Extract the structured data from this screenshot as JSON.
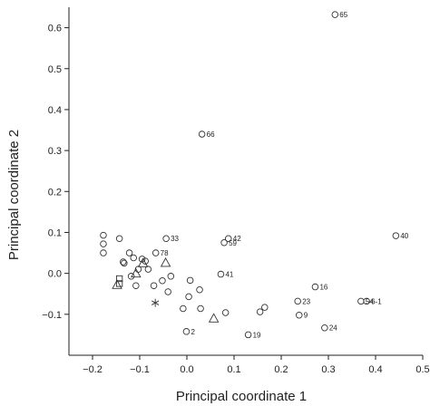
{
  "chart_data": {
    "type": "scatter",
    "xlabel": "Principal coordinate 1",
    "ylabel": "Principal coordinate 2",
    "xlim": [
      -0.25,
      0.5
    ],
    "ylim": [
      -0.2,
      0.65
    ],
    "xticks": [
      -0.2,
      -0.1,
      0.0,
      0.1,
      0.2,
      0.3,
      0.4,
      0.5
    ],
    "xtick_labels": [
      "−0.2",
      "−0.1",
      "0.0",
      "0.1",
      "0.2",
      "0.3",
      "0.4",
      "0.5"
    ],
    "yticks": [
      -0.1,
      0.0,
      0.1,
      0.2,
      0.3,
      0.4,
      0.5,
      0.6
    ],
    "ytick_labels": [
      "−0.1",
      "0.0",
      "0.1",
      "0.2",
      "0.3",
      "0.4",
      "0.5",
      "0.6"
    ],
    "grid": false,
    "points": [
      {
        "x": 0.314,
        "y": 0.632,
        "marker": "circle",
        "label": "65"
      },
      {
        "x": 0.032,
        "y": 0.34,
        "marker": "circle",
        "label": "66"
      },
      {
        "x": 0.443,
        "y": 0.092,
        "marker": "circle",
        "label": "40"
      },
      {
        "x": -0.044,
        "y": 0.085,
        "marker": "circle",
        "label": "33"
      },
      {
        "x": 0.088,
        "y": 0.085,
        "marker": "circle",
        "label": "42"
      },
      {
        "x": 0.079,
        "y": 0.075,
        "marker": "circle",
        "label": "59"
      },
      {
        "x": -0.066,
        "y": 0.05,
        "marker": "circle",
        "label": "78"
      },
      {
        "x": 0.072,
        "y": -0.002,
        "marker": "circle",
        "label": "41"
      },
      {
        "x": 0.272,
        "y": -0.033,
        "marker": "circle",
        "label": "16"
      },
      {
        "x": 0.235,
        "y": -0.068,
        "marker": "circle",
        "label": "23"
      },
      {
        "x": 0.369,
        "y": -0.068,
        "marker": "circle",
        "label": "54"
      },
      {
        "x": 0.381,
        "y": -0.068,
        "marker": "circle",
        "label": "6-1"
      },
      {
        "x": 0.238,
        "y": -0.102,
        "marker": "circle",
        "label": "9"
      },
      {
        "x": 0.292,
        "y": -0.133,
        "marker": "circle",
        "label": "24"
      },
      {
        "x": -0.001,
        "y": -0.142,
        "marker": "circle",
        "label": "2"
      },
      {
        "x": 0.13,
        "y": -0.15,
        "marker": "circle",
        "label": "19"
      },
      {
        "x": -0.177,
        "y": 0.093,
        "marker": "circle",
        "label": ""
      },
      {
        "x": -0.177,
        "y": 0.072,
        "marker": "circle",
        "label": ""
      },
      {
        "x": -0.177,
        "y": 0.05,
        "marker": "circle",
        "label": ""
      },
      {
        "x": -0.143,
        "y": 0.085,
        "marker": "circle",
        "label": ""
      },
      {
        "x": -0.122,
        "y": 0.05,
        "marker": "circle",
        "label": ""
      },
      {
        "x": -0.113,
        "y": 0.038,
        "marker": "circle",
        "label": ""
      },
      {
        "x": -0.135,
        "y": 0.028,
        "marker": "circle",
        "label": ""
      },
      {
        "x": -0.133,
        "y": 0.025,
        "marker": "circle",
        "label": ""
      },
      {
        "x": -0.095,
        "y": 0.035,
        "marker": "circle",
        "label": ""
      },
      {
        "x": -0.088,
        "y": 0.03,
        "marker": "circle",
        "label": ""
      },
      {
        "x": -0.103,
        "y": 0.01,
        "marker": "circle",
        "label": ""
      },
      {
        "x": -0.082,
        "y": 0.01,
        "marker": "circle",
        "label": ""
      },
      {
        "x": -0.118,
        "y": -0.007,
        "marker": "circle",
        "label": ""
      },
      {
        "x": -0.108,
        "y": -0.03,
        "marker": "circle",
        "label": ""
      },
      {
        "x": -0.07,
        "y": -0.03,
        "marker": "circle",
        "label": ""
      },
      {
        "x": -0.052,
        "y": -0.018,
        "marker": "circle",
        "label": ""
      },
      {
        "x": -0.034,
        "y": -0.007,
        "marker": "circle",
        "label": ""
      },
      {
        "x": -0.04,
        "y": -0.045,
        "marker": "circle",
        "label": ""
      },
      {
        "x": 0.007,
        "y": -0.017,
        "marker": "circle",
        "label": ""
      },
      {
        "x": 0.027,
        "y": -0.04,
        "marker": "circle",
        "label": ""
      },
      {
        "x": 0.004,
        "y": -0.057,
        "marker": "circle",
        "label": ""
      },
      {
        "x": -0.008,
        "y": -0.086,
        "marker": "circle",
        "label": ""
      },
      {
        "x": 0.029,
        "y": -0.086,
        "marker": "circle",
        "label": ""
      },
      {
        "x": 0.082,
        "y": -0.096,
        "marker": "circle",
        "label": ""
      },
      {
        "x": 0.155,
        "y": -0.094,
        "marker": "circle",
        "label": ""
      },
      {
        "x": 0.165,
        "y": -0.083,
        "marker": "circle",
        "label": ""
      },
      {
        "x": -0.143,
        "y": -0.025,
        "marker": "square",
        "label": ""
      },
      {
        "x": -0.143,
        "y": -0.013,
        "marker": "square",
        "label": ""
      },
      {
        "x": -0.148,
        "y": -0.028,
        "marker": "triangle",
        "label": ""
      },
      {
        "x": -0.108,
        "y": 0.0,
        "marker": "triangle",
        "label": ""
      },
      {
        "x": -0.093,
        "y": 0.025,
        "marker": "triangle",
        "label": ""
      },
      {
        "x": -0.045,
        "y": 0.026,
        "marker": "triangle",
        "label": ""
      },
      {
        "x": 0.057,
        "y": -0.11,
        "marker": "triangle",
        "label": ""
      },
      {
        "x": -0.067,
        "y": -0.072,
        "marker": "asterisk",
        "label": ""
      }
    ]
  }
}
